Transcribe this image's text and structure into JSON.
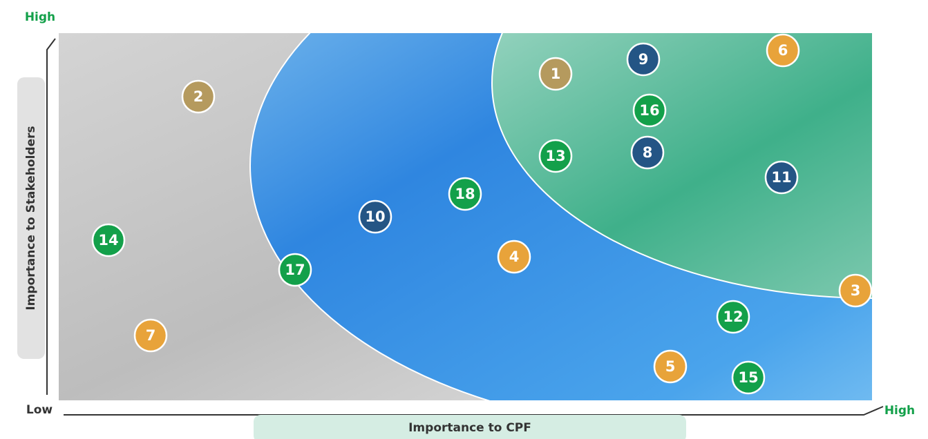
{
  "axes": {
    "y_high": "High",
    "y_label": "Importance to Stakeholders",
    "x_low": "Low",
    "x_label": "Importance to CPF",
    "x_high": "High"
  },
  "nodes": [
    {
      "label": "1"
    },
    {
      "label": "2"
    },
    {
      "label": "3"
    },
    {
      "label": "4"
    },
    {
      "label": "5"
    },
    {
      "label": "6"
    },
    {
      "label": "7"
    },
    {
      "label": "8"
    },
    {
      "label": "9"
    },
    {
      "label": "10"
    },
    {
      "label": "11"
    },
    {
      "label": "12"
    },
    {
      "label": "13"
    },
    {
      "label": "14"
    },
    {
      "label": "15"
    },
    {
      "label": "16"
    },
    {
      "label": "17"
    },
    {
      "label": "18"
    }
  ]
}
